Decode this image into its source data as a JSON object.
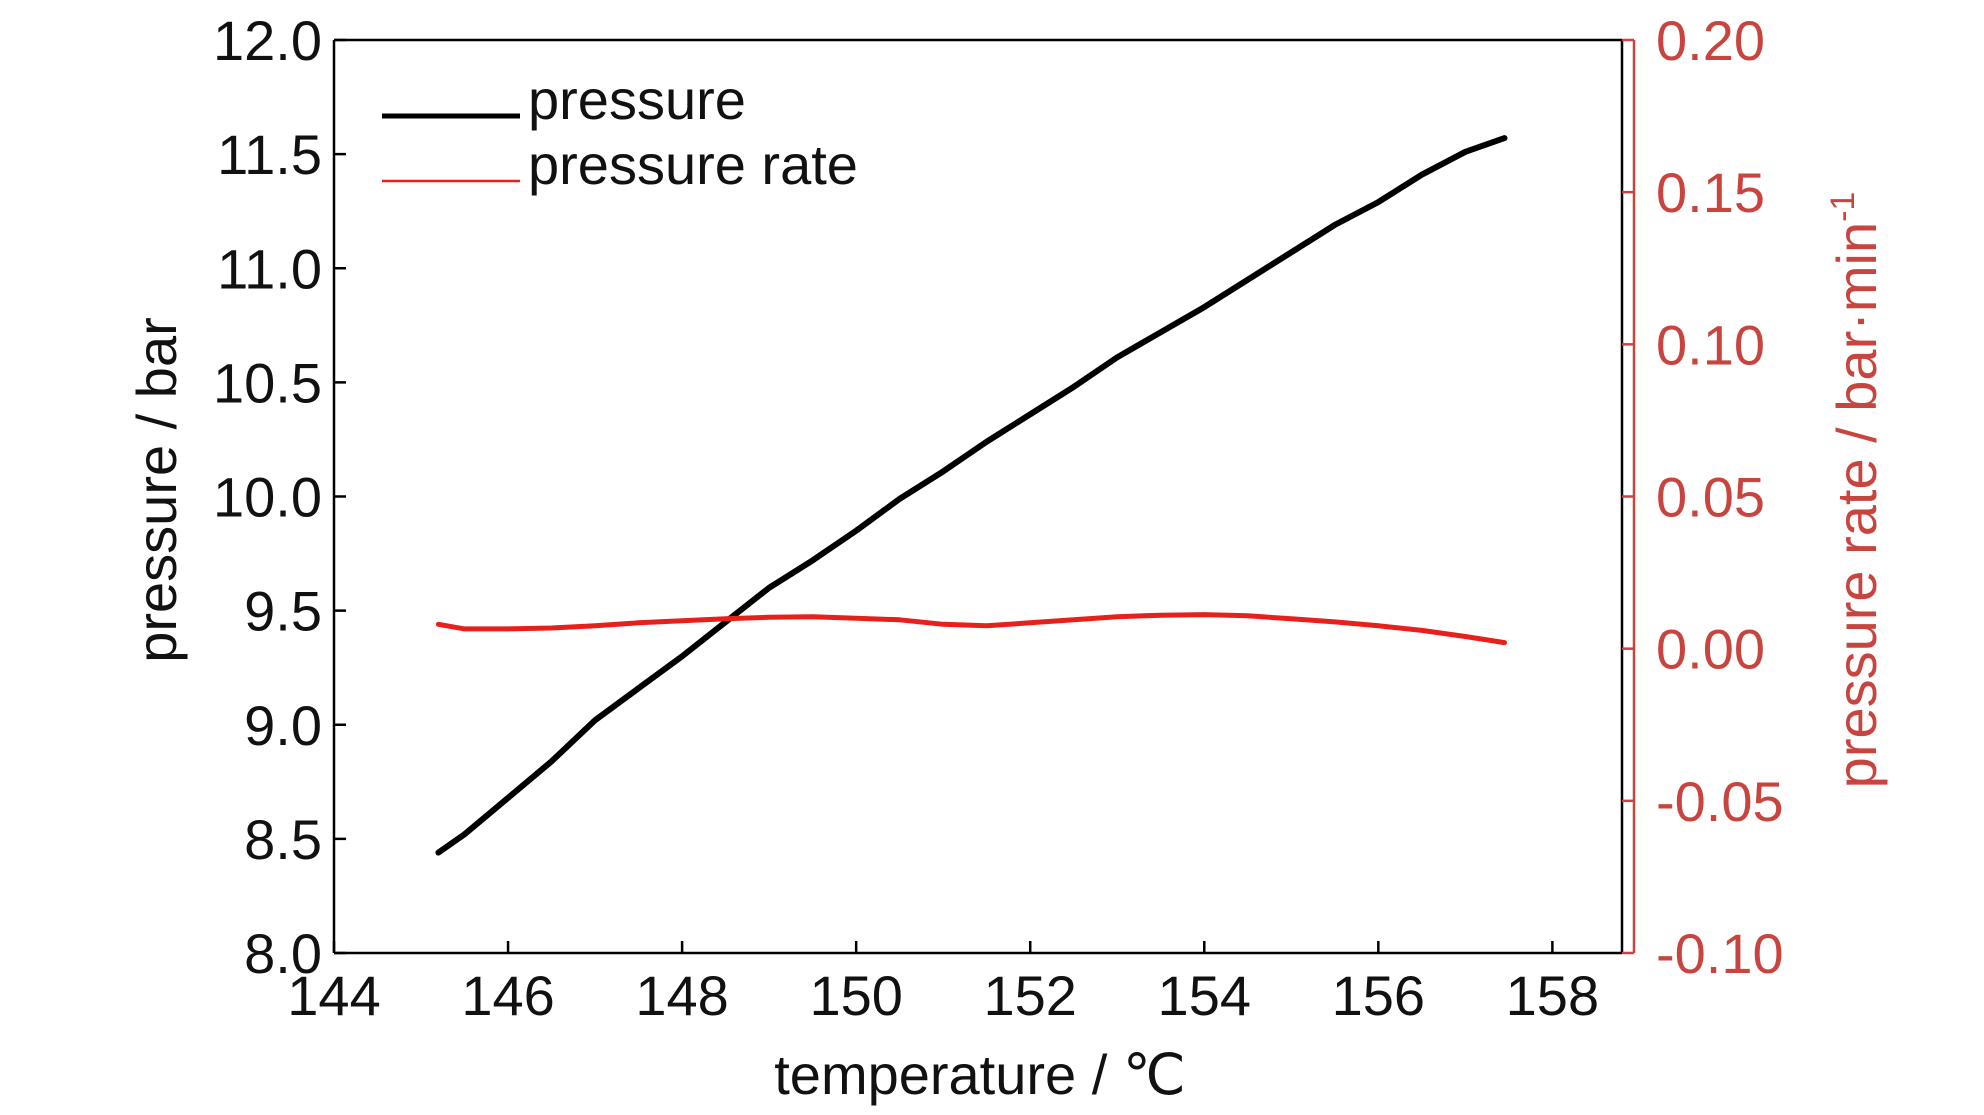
{
  "chart_data": {
    "type": "line",
    "title": "",
    "xlabel": "temperature / ℃",
    "ylabel_left": "pressure / bar",
    "ylabel_right": "pressure rate / bar·min",
    "ylabel_right_superscript": "-1",
    "xlim": [
      144,
      158.8
    ],
    "ylim_left": [
      8.0,
      12.0
    ],
    "ylim_right": [
      -0.1,
      0.2
    ],
    "x_ticks": [
      "144",
      "146",
      "148",
      "150",
      "152",
      "154",
      "156",
      "158"
    ],
    "y_left_ticks": [
      "8.0",
      "8.5",
      "9.0",
      "9.5",
      "10.0",
      "10.5",
      "11.0",
      "11.5",
      "12.0"
    ],
    "y_right_ticks": [
      "-0.10",
      "-0.05",
      "0.00",
      "0.05",
      "0.10",
      "0.15",
      "0.20"
    ],
    "grid": false,
    "legend_position": "top-left",
    "colors": {
      "pressure": "#000000",
      "pressure_rate": "#e8201c",
      "right_axis": "#c8453f",
      "left_axis": "#000000"
    },
    "series": [
      {
        "name": "pressure",
        "axis": "left",
        "x": [
          145.2,
          145.5,
          146.0,
          146.5,
          147.0,
          147.5,
          148.0,
          148.5,
          149.0,
          149.5,
          150.0,
          150.5,
          151.0,
          151.5,
          152.0,
          152.5,
          153.0,
          153.5,
          154.0,
          154.5,
          155.0,
          155.5,
          156.0,
          156.5,
          157.0,
          157.45
        ],
        "y": [
          8.44,
          8.52,
          8.68,
          8.84,
          9.02,
          9.16,
          9.3,
          9.45,
          9.6,
          9.72,
          9.85,
          9.99,
          10.11,
          10.24,
          10.36,
          10.48,
          10.61,
          10.72,
          10.83,
          10.95,
          11.07,
          11.19,
          11.29,
          11.41,
          11.51,
          11.57
        ]
      },
      {
        "name": "pressure rate",
        "axis": "right",
        "x": [
          145.2,
          145.5,
          146.0,
          146.5,
          147.0,
          147.5,
          148.0,
          148.5,
          149.0,
          149.5,
          150.0,
          150.5,
          151.0,
          151.5,
          152.0,
          152.5,
          153.0,
          153.5,
          154.0,
          154.5,
          155.0,
          155.5,
          156.0,
          156.5,
          157.0,
          157.45
        ],
        "y": [
          0.008,
          0.0065,
          0.0065,
          0.0068,
          0.0075,
          0.0085,
          0.0092,
          0.0098,
          0.0103,
          0.0105,
          0.01,
          0.0095,
          0.008,
          0.0075,
          0.0085,
          0.0095,
          0.0105,
          0.011,
          0.0112,
          0.0108,
          0.0098,
          0.0088,
          0.0075,
          0.006,
          0.004,
          0.002
        ]
      }
    ]
  }
}
